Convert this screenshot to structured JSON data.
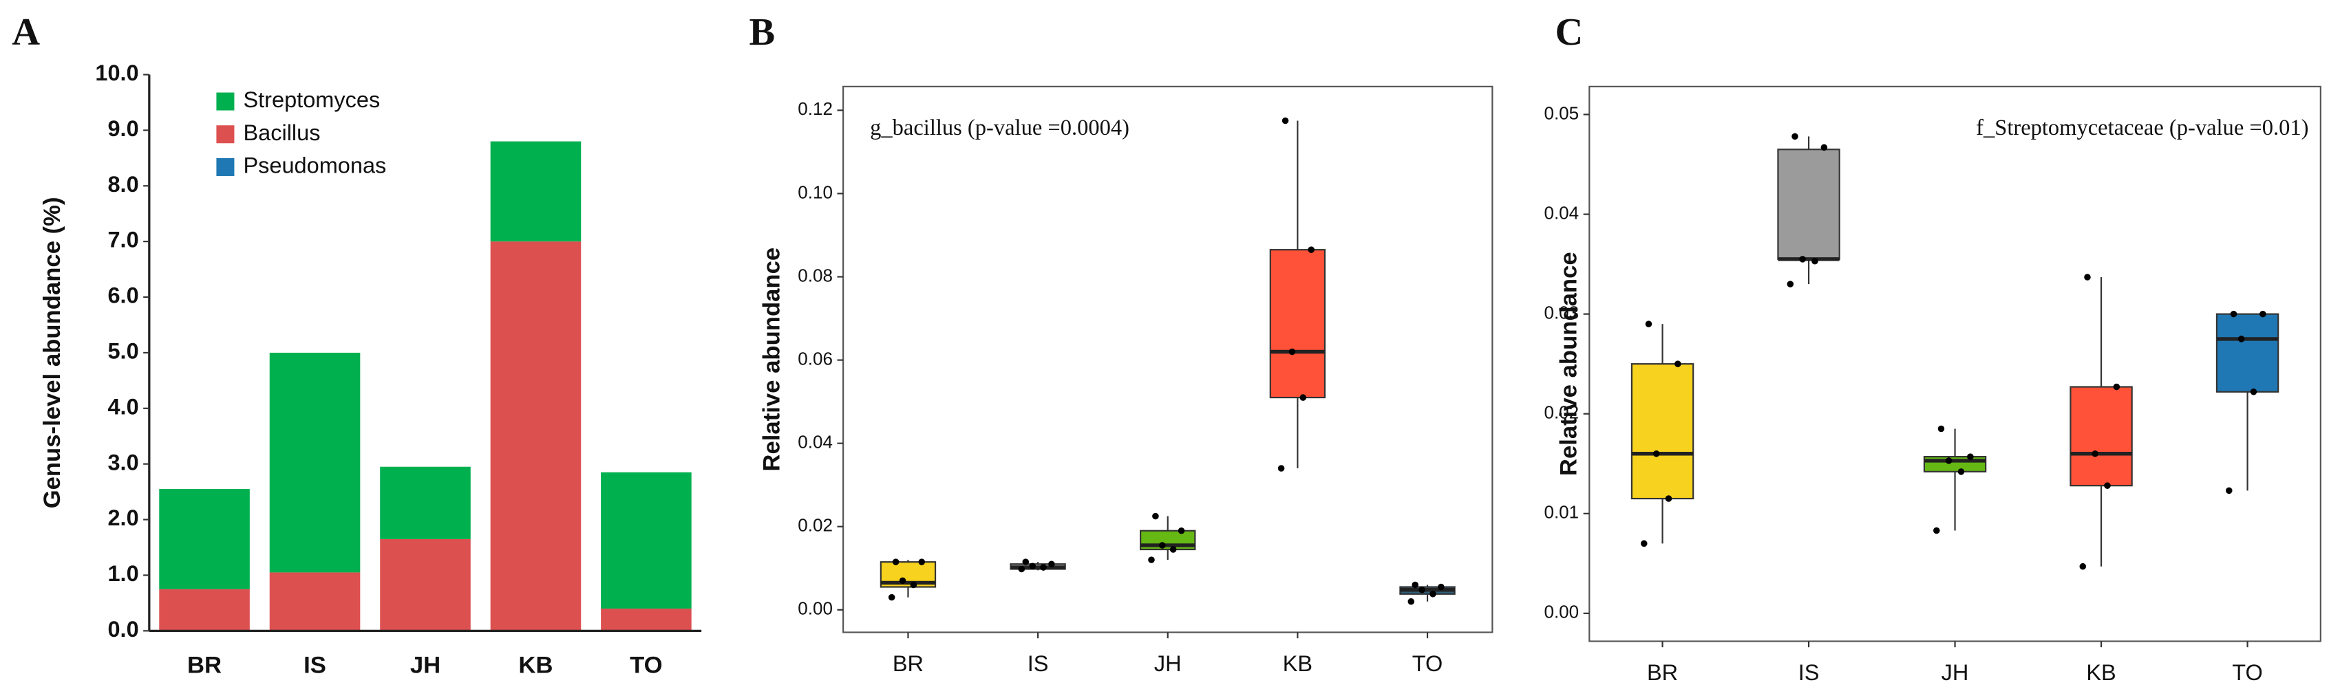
{
  "chart_data": [
    {
      "type": "stacked_bar",
      "panel": "A",
      "ylabel": "Genus-level abundance (%)",
      "categories": [
        "BR",
        "IS",
        "JH",
        "KB",
        "TO"
      ],
      "series": [
        {
          "name": "Streptomyces",
          "color": "#00b04f",
          "values": [
            1.8,
            3.95,
            1.3,
            1.8,
            2.45
          ]
        },
        {
          "name": "Bacillus",
          "color": "#dd5050",
          "values": [
            0.75,
            1.05,
            1.65,
            7.0,
            0.4
          ]
        },
        {
          "name": "Pseudomonas",
          "color": "#1f78b4",
          "values": [
            0,
            0,
            0,
            0,
            0
          ]
        }
      ],
      "ylim": [
        0,
        10
      ],
      "yticks": [
        {
          "value": 0,
          "label": "0.0"
        },
        {
          "value": 1,
          "label": "1.0"
        },
        {
          "value": 2,
          "label": "2.0"
        },
        {
          "value": 3,
          "label": "3.0"
        },
        {
          "value": 4,
          "label": "4.0"
        },
        {
          "value": 5,
          "label": "5.0"
        },
        {
          "value": 6,
          "label": "6.0"
        },
        {
          "value": 7,
          "label": "7.0"
        },
        {
          "value": 8,
          "label": "8.0"
        },
        {
          "value": 9,
          "label": "9.0"
        },
        {
          "value": 10,
          "label": "10.0"
        }
      ]
    },
    {
      "type": "boxplot",
      "panel": "B",
      "ylabel": "Relative abundance",
      "annotation": "g_bacillus (p-value =0.0004)",
      "categories": [
        "BR",
        "IS",
        "JH",
        "KB",
        "TO"
      ],
      "colors": [
        "#f7d21e",
        "#9b9b9b",
        "#66b814",
        "#ff5238",
        "#2c5f7c"
      ],
      "boxes": [
        {
          "min": 0.003,
          "q1": 0.0055,
          "median": 0.0065,
          "q3": 0.0115,
          "max": 0.012,
          "points": [
            0.003,
            0.006,
            0.007,
            0.0115,
            0.0115
          ]
        },
        {
          "min": 0.0095,
          "q1": 0.0098,
          "median": 0.0102,
          "q3": 0.011,
          "max": 0.0115,
          "points": [
            0.0098,
            0.0102,
            0.0105,
            0.011,
            0.0115
          ]
        },
        {
          "min": 0.012,
          "q1": 0.0145,
          "median": 0.0155,
          "q3": 0.019,
          "max": 0.0225,
          "points": [
            0.012,
            0.0145,
            0.0155,
            0.019,
            0.0225
          ]
        },
        {
          "min": 0.034,
          "q1": 0.051,
          "median": 0.062,
          "q3": 0.0865,
          "max": 0.1175,
          "points": [
            0.034,
            0.051,
            0.062,
            0.0865,
            0.1175
          ]
        },
        {
          "min": 0.002,
          "q1": 0.0038,
          "median": 0.0048,
          "q3": 0.0055,
          "max": 0.006,
          "points": [
            0.002,
            0.0038,
            0.0048,
            0.0055,
            0.006
          ]
        }
      ],
      "ylim": [
        -0.0054,
        0.1257
      ],
      "yticks": [
        {
          "value": 0,
          "label": "0.00"
        },
        0.02,
        0.04,
        0.06,
        0.08,
        {
          "value": 0.1,
          "label": "0.10"
        },
        0.12
      ]
    },
    {
      "type": "boxplot",
      "panel": "C",
      "ylabel": "Relative abundance",
      "annotation": "f_Streptomycetaceae (p-value =0.01)",
      "categories": [
        "BR",
        "IS",
        "JH",
        "KB",
        "TO"
      ],
      "colors": [
        "#f7d21e",
        "#9b9b9b",
        "#66b814",
        "#ff5238",
        "#1f78b4"
      ],
      "boxes": [
        {
          "min": 0.007,
          "q1": 0.0115,
          "median": 0.016,
          "q3": 0.025,
          "max": 0.029,
          "points": [
            0.007,
            0.0115,
            0.016,
            0.025,
            0.029
          ]
        },
        {
          "min": 0.033,
          "q1": 0.0355,
          "median": 0.0355,
          "q3": 0.0465,
          "max": 0.0478,
          "points": [
            0.033,
            0.0353,
            0.0355,
            0.0467,
            0.0478
          ]
        },
        {
          "min": 0.0083,
          "q1": 0.0142,
          "median": 0.0153,
          "q3": 0.0157,
          "max": 0.0185,
          "points": [
            0.0083,
            0.0142,
            0.0153,
            0.0157,
            0.0185
          ]
        },
        {
          "min": 0.0047,
          "q1": 0.0128,
          "median": 0.016,
          "q3": 0.0227,
          "max": 0.0337,
          "points": [
            0.0047,
            0.0128,
            0.016,
            0.0227,
            0.0337
          ]
        },
        {
          "min": 0.0123,
          "q1": 0.0222,
          "median": 0.0275,
          "q3": 0.03,
          "max": 0.03,
          "points": [
            0.0123,
            0.0222,
            0.0275,
            0.03,
            0.03
          ]
        }
      ],
      "ylim": [
        -0.0028,
        0.0528
      ],
      "yticks": [
        {
          "value": 0,
          "label": "0.00"
        },
        0.01,
        0.02,
        0.03,
        0.04,
        0.05
      ]
    }
  ]
}
